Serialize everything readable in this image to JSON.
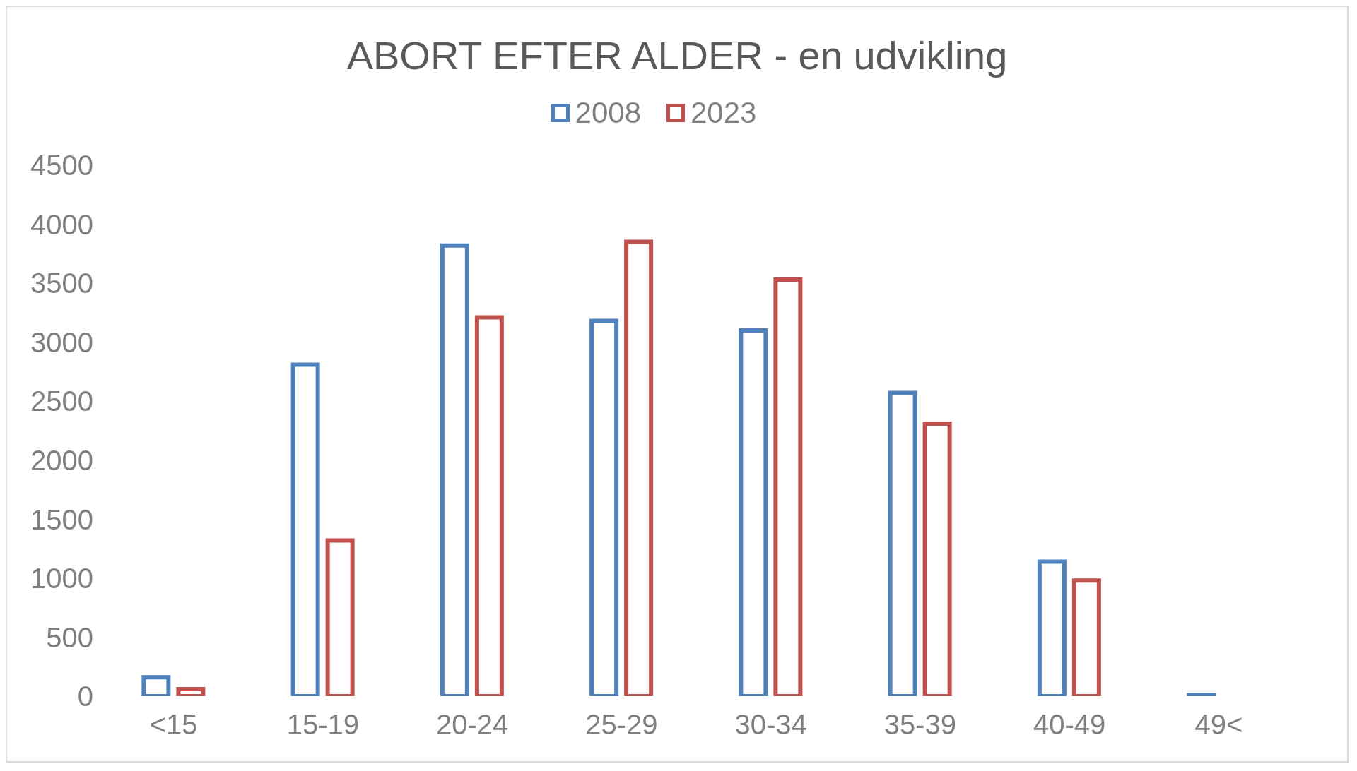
{
  "chart_data": {
    "type": "bar",
    "title": "ABORT EFTER ALDER - en udvikling",
    "categories": [
      "<15",
      "15-19",
      "20-24",
      "25-29",
      "30-34",
      "35-39",
      "40-49",
      "49<"
    ],
    "series": [
      {
        "name": "2008",
        "color": "#4f81bd",
        "values": [
          160,
          2810,
          3820,
          3180,
          3100,
          2570,
          1140,
          10
        ]
      },
      {
        "name": "2023",
        "color": "#c0504d",
        "values": [
          60,
          1320,
          3210,
          3850,
          3530,
          2310,
          980,
          null
        ]
      }
    ],
    "ylim": [
      0,
      4500
    ],
    "yticks": [
      0,
      500,
      1000,
      1500,
      2000,
      2500,
      3000,
      3500,
      4000,
      4500
    ],
    "grid": false,
    "legend": "top"
  }
}
